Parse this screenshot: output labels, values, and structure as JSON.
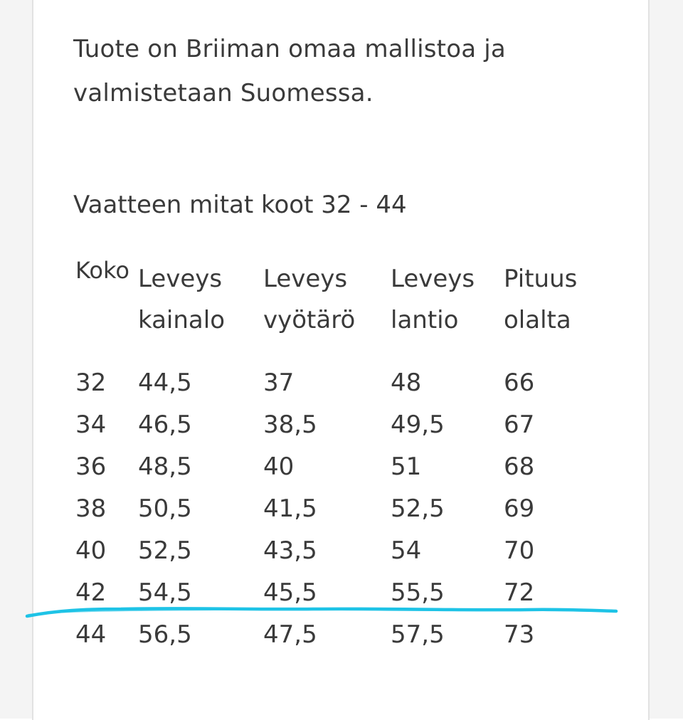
{
  "intro_text": "Tuote on Briiman omaa mallistoa ja valmistetaan Suomessa.",
  "size_table": {
    "title": "Vaatteen mitat koot 32 - 44",
    "headers": [
      {
        "line1": "Koko",
        "line2": ""
      },
      {
        "line1": "Leveys",
        "line2": "kainalo"
      },
      {
        "line1": "Leveys",
        "line2": "vyötärö"
      },
      {
        "line1": "Leveys",
        "line2": "lantio"
      },
      {
        "line1": "Pituus",
        "line2": "olalta"
      }
    ],
    "rows": [
      [
        "32",
        "44,5",
        "37",
        "48",
        "66"
      ],
      [
        "34",
        "46,5",
        "38,5",
        "49,5",
        "67"
      ],
      [
        "36",
        "48,5",
        "40",
        "51",
        "68"
      ],
      [
        "38",
        "50,5",
        "41,5",
        "52,5",
        "69"
      ],
      [
        "40",
        "52,5",
        "43,5",
        "54",
        "70"
      ],
      [
        "42",
        "54,5",
        "45,5",
        "55,5",
        "72"
      ],
      [
        "44",
        "56,5",
        "47,5",
        "57,5",
        "73"
      ]
    ]
  },
  "annotation": {
    "underline_color": "#1ec3e6",
    "marks_row_after": "42"
  },
  "colors": {
    "text": "#3a3a3a",
    "card_border": "#e2e2e2"
  }
}
